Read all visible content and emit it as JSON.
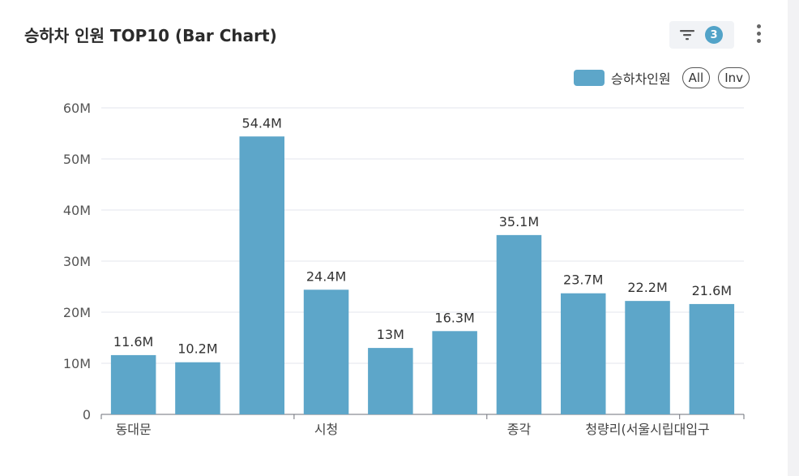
{
  "title": "승하차 인원 TOP10 (Bar Chart)",
  "toolbar": {
    "filter_count": "3",
    "filter_icon": "filter-icon",
    "more_icon": "more-vertical-icon"
  },
  "legend": {
    "series_label": "승하차인원",
    "all_label": "All",
    "inv_label": "Inv"
  },
  "colors": {
    "bar": "#5da6c9",
    "badge": "#52a3c8"
  },
  "chart_data": {
    "type": "bar",
    "title": "승하차 인원 TOP10 (Bar Chart)",
    "xlabel": "",
    "ylabel": "",
    "ylim": [
      0,
      60000000
    ],
    "yticks": [
      "0",
      "10M",
      "20M",
      "30M",
      "40M",
      "50M",
      "60M"
    ],
    "grid": true,
    "legend_position": "top-right",
    "categories": [
      "동대문",
      "",
      "",
      "시청",
      "",
      "",
      "종각",
      "",
      "청량리(서울시립대입구)",
      ""
    ],
    "x_tick_labels": [
      {
        "index": 0,
        "text": "동대문"
      },
      {
        "index": 3,
        "text": "시청"
      },
      {
        "index": 6,
        "text": "종각"
      },
      {
        "index": 8,
        "text": "청량리(서울시립대입구"
      }
    ],
    "series": [
      {
        "name": "승하차인원",
        "values": [
          11600000,
          10200000,
          54400000,
          24400000,
          13000000,
          16300000,
          35100000,
          23700000,
          22200000,
          21600000
        ],
        "labels": [
          "11.6M",
          "10.2M",
          "54.4M",
          "24.4M",
          "13M",
          "16.3M",
          "35.1M",
          "23.7M",
          "22.2M",
          "21.6M"
        ]
      }
    ]
  }
}
